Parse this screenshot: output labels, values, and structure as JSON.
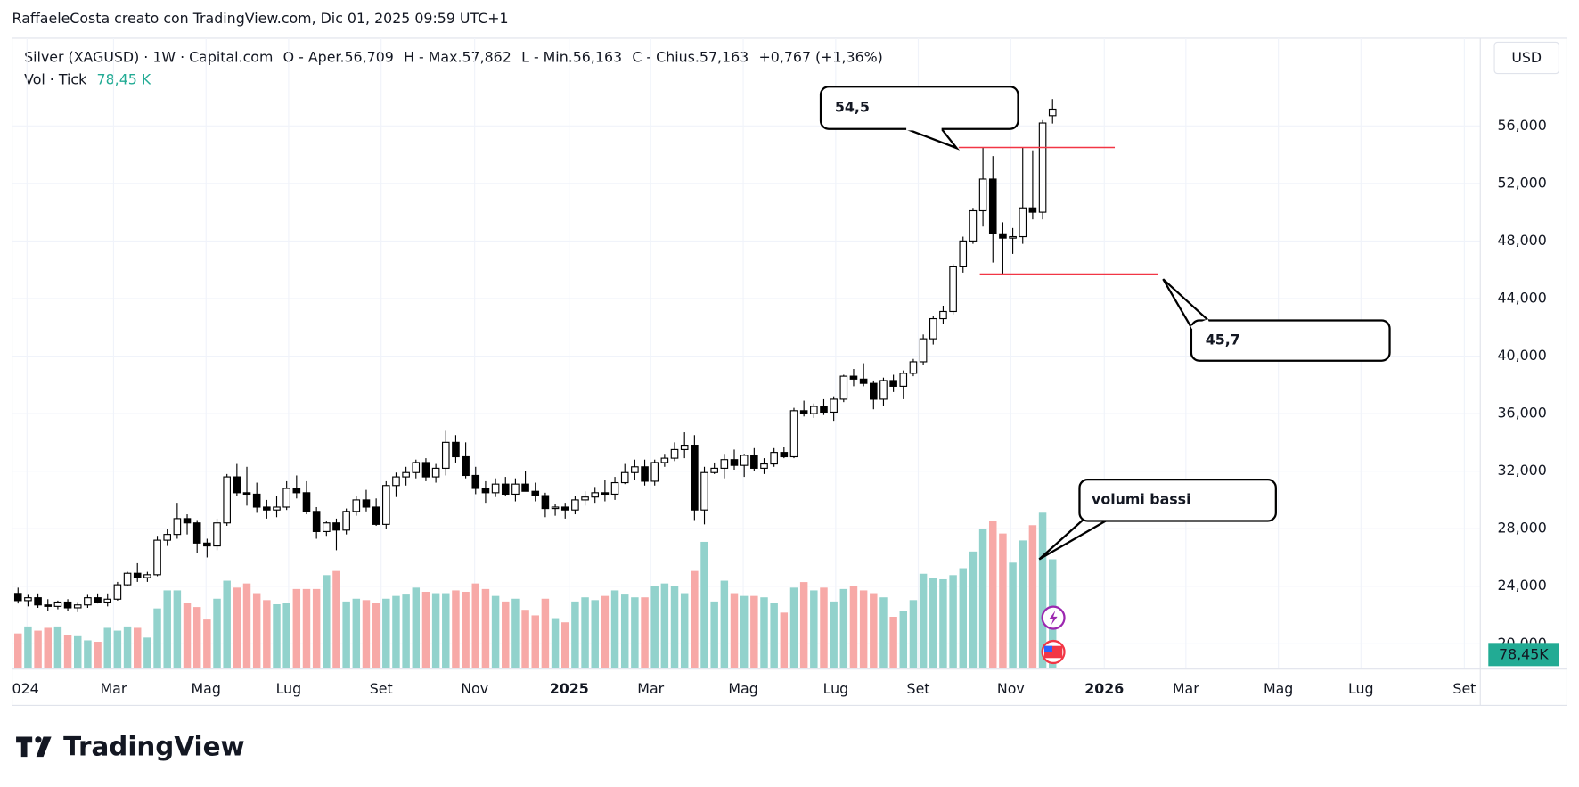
{
  "chart_data": {
    "type": "candlestick",
    "watermark": "RaffaeleCosta creato con TradingView.com, Dic 01, 2025 09:59 UTC+1",
    "title": "Silver (XAGUSD) · 1W · Capital.com",
    "ohlc_labels": [
      "O - Aper.56,709",
      "H - Max.57,862",
      "L - Min.56,163",
      "C - Chius.57,163",
      "+0,767 (+1,36%)"
    ],
    "volume_title": "Vol · Tick",
    "volume_last_label": "78,45 K",
    "volume_axis_label": "78,45K",
    "currency": "USD",
    "brand": "TradingView",
    "open": [
      23.5,
      23.0,
      23.2,
      22.7,
      22.6,
      22.9,
      22.5,
      22.7,
      23.2,
      22.9,
      23.1,
      24.1,
      24.9,
      24.6,
      24.8,
      27.2,
      27.6,
      28.7,
      28.4,
      27.0,
      26.8,
      28.4,
      31.6,
      30.5,
      30.4,
      29.5,
      29.3,
      29.5,
      30.8,
      30.5,
      29.2,
      27.8,
      28.4,
      27.9,
      29.2,
      30.0,
      29.5,
      28.3,
      31.0,
      31.6,
      31.9,
      32.6,
      31.6,
      32.2,
      34.0,
      33.0,
      31.7,
      30.8,
      30.5,
      31.1,
      30.4,
      31.1,
      30.6,
      30.3,
      29.4,
      29.5,
      29.3,
      30.0,
      30.2,
      30.5,
      30.4,
      31.2,
      31.9,
      32.3,
      31.3,
      32.6,
      32.9,
      33.5,
      33.8,
      29.3,
      31.9,
      32.2,
      32.8,
      32.4,
      33.1,
      32.2,
      32.5,
      33.3,
      33.0,
      36.2,
      36.0,
      36.5,
      36.1,
      37.0,
      38.6,
      38.4,
      38.1,
      37.0,
      38.3,
      37.9,
      38.8,
      39.6,
      41.2,
      42.6,
      43.1,
      46.2,
      48.0,
      50.1,
      52.3,
      48.5,
      48.2,
      48.3,
      50.3,
      50.0,
      56.709
    ],
    "high": [
      23.9,
      23.4,
      23.5,
      23.1,
      23.0,
      23.1,
      22.9,
      23.4,
      23.5,
      23.5,
      24.3,
      25.0,
      25.6,
      25.0,
      27.5,
      28.0,
      29.8,
      29.0,
      28.6,
      27.3,
      28.7,
      31.8,
      32.5,
      32.3,
      31.2,
      30.0,
      30.3,
      31.3,
      31.7,
      31.3,
      29.5,
      28.5,
      28.7,
      29.4,
      30.3,
      30.7,
      30.1,
      31.3,
      31.9,
      32.3,
      32.8,
      32.9,
      32.5,
      34.8,
      34.5,
      34.0,
      32.3,
      31.3,
      31.5,
      31.6,
      31.5,
      32.0,
      31.2,
      30.5,
      29.7,
      29.8,
      30.3,
      30.6,
      30.9,
      31.4,
      31.6,
      32.5,
      32.8,
      32.8,
      32.8,
      33.2,
      34.0,
      34.7,
      34.5,
      32.3,
      32.6,
      33.2,
      33.5,
      33.2,
      33.6,
      32.9,
      33.6,
      33.7,
      36.4,
      36.9,
      36.7,
      37.0,
      37.2,
      38.7,
      39.1,
      39.5,
      38.3,
      38.5,
      38.7,
      39.0,
      39.8,
      41.5,
      42.8,
      43.5,
      46.4,
      48.3,
      50.3,
      54.5,
      53.9,
      49.3,
      48.9,
      54.5,
      54.3,
      56.4,
      57.862
    ],
    "low": [
      22.8,
      22.6,
      22.5,
      22.3,
      22.4,
      22.3,
      22.2,
      22.5,
      22.8,
      22.6,
      23.0,
      24.0,
      24.3,
      24.3,
      24.7,
      26.8,
      27.3,
      27.6,
      26.3,
      26.0,
      26.5,
      28.2,
      30.3,
      29.6,
      29.1,
      28.7,
      28.8,
      29.3,
      30.1,
      29.0,
      27.3,
      27.5,
      26.5,
      27.6,
      28.9,
      29.2,
      28.2,
      28.0,
      30.2,
      31.0,
      31.5,
      31.3,
      31.2,
      31.7,
      32.6,
      31.5,
      30.4,
      29.8,
      30.2,
      30.3,
      29.9,
      30.6,
      29.9,
      28.8,
      28.9,
      28.7,
      29.0,
      29.6,
      29.8,
      29.9,
      30.0,
      31.1,
      31.4,
      31.0,
      31.0,
      32.3,
      32.7,
      32.9,
      28.6,
      28.3,
      31.8,
      31.5,
      32.1,
      31.6,
      32.0,
      31.8,
      32.3,
      32.9,
      32.9,
      35.8,
      35.7,
      35.9,
      35.5,
      36.8,
      37.9,
      37.9,
      36.3,
      36.5,
      37.5,
      37.0,
      38.6,
      39.4,
      40.8,
      42.2,
      42.9,
      45.8,
      47.8,
      49.0,
      46.5,
      45.7,
      47.1,
      47.8,
      49.5,
      49.5,
      56.163
    ],
    "close": [
      23.0,
      23.2,
      22.7,
      22.6,
      22.9,
      22.5,
      22.7,
      23.2,
      22.9,
      23.1,
      24.1,
      24.9,
      24.6,
      24.8,
      27.2,
      27.6,
      28.7,
      28.4,
      27.0,
      26.8,
      28.4,
      31.6,
      30.5,
      30.4,
      29.5,
      29.3,
      29.5,
      30.8,
      30.5,
      29.2,
      27.8,
      28.4,
      27.9,
      29.2,
      30.0,
      29.5,
      28.3,
      31.0,
      31.6,
      31.9,
      32.6,
      31.6,
      32.2,
      34.0,
      33.0,
      31.7,
      30.8,
      30.5,
      31.1,
      30.4,
      31.1,
      30.6,
      30.3,
      29.4,
      29.5,
      29.3,
      30.0,
      30.2,
      30.5,
      30.4,
      31.2,
      31.9,
      32.3,
      31.3,
      32.6,
      32.9,
      33.5,
      33.8,
      29.3,
      31.9,
      32.2,
      32.8,
      32.4,
      33.1,
      32.2,
      32.5,
      33.3,
      33.0,
      36.2,
      36.0,
      36.5,
      36.1,
      37.0,
      38.6,
      38.4,
      38.1,
      37.0,
      38.3,
      37.9,
      38.8,
      39.6,
      41.2,
      42.6,
      43.1,
      46.2,
      48.0,
      50.1,
      52.3,
      48.5,
      48.2,
      48.3,
      50.3,
      50.0,
      56.2,
      57.163
    ],
    "volume": [
      25,
      30,
      27,
      29,
      30,
      24,
      23,
      20,
      19,
      29,
      27,
      30,
      29,
      22,
      43,
      56,
      56,
      47,
      44,
      35,
      50,
      63,
      58,
      61,
      54,
      49,
      46,
      47,
      57,
      57,
      57,
      67,
      70,
      48,
      50,
      49,
      47,
      50,
      52,
      53,
      58,
      55,
      54,
      54,
      56,
      55,
      61,
      57,
      52,
      48,
      50,
      42,
      38,
      50,
      36,
      33,
      48,
      51,
      49,
      52,
      56,
      53,
      51,
      51,
      59,
      61,
      59,
      54,
      70,
      91,
      48,
      63,
      54,
      52,
      52,
      51,
      47,
      40,
      58,
      62,
      56,
      58,
      48,
      57,
      59,
      56,
      54,
      51,
      37,
      41,
      49,
      68,
      65,
      64,
      67,
      72,
      84,
      100,
      106,
      97,
      76,
      92,
      103,
      112,
      78.45
    ],
    "up_color": "#ffffff",
    "down_color": "#000000",
    "volume_up_color": "#92d2cc",
    "volume_down_color": "#f7a9a7",
    "volume_label_color": "#22ab94",
    "ylim": [
      18.31,
      62.09
    ],
    "yticks": [
      {
        "value": 20,
        "label": "20,000"
      },
      {
        "value": 24,
        "label": "24,000"
      },
      {
        "value": 28,
        "label": "28,000"
      },
      {
        "value": 32,
        "label": "32,000"
      },
      {
        "value": 36,
        "label": "36,000"
      },
      {
        "value": 40,
        "label": "40,000"
      },
      {
        "value": 44,
        "label": "44,000"
      },
      {
        "value": 48,
        "label": "48,000"
      },
      {
        "value": 52,
        "label": "52,000"
      },
      {
        "value": 56,
        "label": "56,000"
      }
    ],
    "vlim": [
      0,
      454
    ],
    "xlim": [
      -0.6,
      147.0
    ],
    "xticks": [
      {
        "value": 0.9,
        "label": "024"
      },
      {
        "value": 9.6,
        "label": "Mar"
      },
      {
        "value": 18.9,
        "label": "Mag"
      },
      {
        "value": 27.2,
        "label": "Lug"
      },
      {
        "value": 36.5,
        "label": "Set"
      },
      {
        "value": 45.9,
        "label": "Nov"
      },
      {
        "value": 55.4,
        "label": "2025"
      },
      {
        "value": 63.6,
        "label": "Mar"
      },
      {
        "value": 72.9,
        "label": "Mag"
      },
      {
        "value": 82.2,
        "label": "Lug"
      },
      {
        "value": 90.5,
        "label": "Set"
      },
      {
        "value": 99.8,
        "label": "Nov"
      },
      {
        "value": 109.2,
        "label": "2026"
      },
      {
        "value": 117.4,
        "label": "Mar"
      },
      {
        "value": 126.7,
        "label": "Mag"
      },
      {
        "value": 135.0,
        "label": "Lug"
      },
      {
        "value": 145.4,
        "label": "Set"
      }
    ],
    "grid": true,
    "levels": [
      {
        "value": 54.5,
        "label": "54,5",
        "color": "#f23645"
      },
      {
        "value": 45.7,
        "label": "45,7",
        "color": "#f23645"
      }
    ],
    "note": "volumi bassi"
  }
}
